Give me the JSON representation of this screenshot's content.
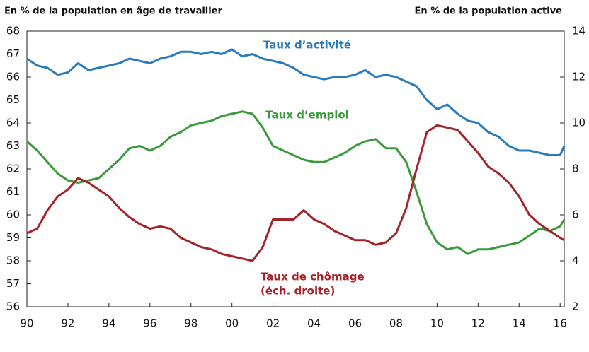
{
  "chart_data": {
    "type": "line",
    "left_axis_label": "En % de la population en âge de travailler",
    "right_axis_label": "En % de la population active",
    "x": [
      1990,
      1990.5,
      1991,
      1991.5,
      1992,
      1992.5,
      1993,
      1993.5,
      1994,
      1994.5,
      1995,
      1995.5,
      1996,
      1996.5,
      1997,
      1997.5,
      1998,
      1998.5,
      1999,
      1999.5,
      2000,
      2000.5,
      2001,
      2001.5,
      2002,
      2002.5,
      2003,
      2003.5,
      2004,
      2004.5,
      2005,
      2005.5,
      2006,
      2006.5,
      2007,
      2007.5,
      2008,
      2008.5,
      2009,
      2009.5,
      2010,
      2010.5,
      2011,
      2011.5,
      2012,
      2012.5,
      2013,
      2013.5,
      2014,
      2014.5,
      2015,
      2015.5,
      2016,
      2016.2
    ],
    "series": [
      {
        "name": "Taux d’activité",
        "color": "#2b7bba",
        "axis": "y",
        "values": [
          66.8,
          66.5,
          66.4,
          66.1,
          66.2,
          66.6,
          66.3,
          66.4,
          66.5,
          66.6,
          66.8,
          66.7,
          66.6,
          66.8,
          66.9,
          67.1,
          67.1,
          67.0,
          67.1,
          67.0,
          67.2,
          66.9,
          67.0,
          66.8,
          66.7,
          66.6,
          66.4,
          66.1,
          66.0,
          65.9,
          66.0,
          66.0,
          66.1,
          66.3,
          66.0,
          66.1,
          66.0,
          65.8,
          65.6,
          65.0,
          64.6,
          64.8,
          64.4,
          64.1,
          64.0,
          63.6,
          63.4,
          63.0,
          62.8,
          62.8,
          62.7,
          62.6,
          62.6,
          63.0
        ]
      },
      {
        "name": "Taux d’emploi",
        "color": "#3b9a3b",
        "axis": "y",
        "values": [
          63.2,
          62.8,
          62.3,
          61.8,
          61.5,
          61.4,
          61.5,
          61.6,
          62.0,
          62.4,
          62.9,
          63.0,
          62.8,
          63.0,
          63.4,
          63.6,
          63.9,
          64.0,
          64.1,
          64.3,
          64.4,
          64.5,
          64.4,
          63.8,
          63.0,
          62.8,
          62.6,
          62.4,
          62.3,
          62.3,
          62.5,
          62.7,
          63.0,
          63.2,
          63.3,
          62.9,
          62.9,
          62.3,
          61.0,
          59.6,
          58.8,
          58.5,
          58.6,
          58.3,
          58.5,
          58.5,
          58.6,
          58.7,
          58.8,
          59.1,
          59.4,
          59.3,
          59.5,
          59.8
        ]
      },
      {
        "name": "Taux de chômage",
        "color": "#a4242b",
        "axis": "y2",
        "values": [
          5.2,
          5.4,
          6.2,
          6.8,
          7.1,
          7.6,
          7.4,
          7.1,
          6.8,
          6.3,
          5.9,
          5.6,
          5.4,
          5.5,
          5.4,
          5.0,
          4.8,
          4.6,
          4.5,
          4.3,
          4.2,
          4.1,
          4.0,
          4.6,
          5.8,
          5.8,
          5.8,
          6.2,
          5.8,
          5.6,
          5.3,
          5.1,
          4.9,
          4.9,
          4.7,
          4.8,
          5.2,
          6.3,
          8.0,
          9.6,
          9.9,
          9.8,
          9.7,
          9.2,
          8.7,
          8.1,
          7.8,
          7.4,
          6.8,
          6.0,
          5.6,
          5.3,
          5.0,
          4.9
        ]
      }
    ],
    "right_scale_note": "(éch. droite)",
    "xlim": [
      1990,
      2016.2
    ],
    "xticks": [
      {
        "value": 1990,
        "label": "90"
      },
      {
        "value": 1992,
        "label": "92"
      },
      {
        "value": 1994,
        "label": "94"
      },
      {
        "value": 1996,
        "label": "96"
      },
      {
        "value": 1998,
        "label": "98"
      },
      {
        "value": 2000,
        "label": "00"
      },
      {
        "value": 2002,
        "label": "02"
      },
      {
        "value": 2004,
        "label": "04"
      },
      {
        "value": 2006,
        "label": "06"
      },
      {
        "value": 2008,
        "label": "08"
      },
      {
        "value": 2010,
        "label": "10"
      },
      {
        "value": 2012,
        "label": "12"
      },
      {
        "value": 2014,
        "label": "14"
      },
      {
        "value": 2016,
        "label": "16"
      }
    ],
    "ylim": [
      56,
      68
    ],
    "yticks": [
      56,
      57,
      58,
      59,
      60,
      61,
      62,
      63,
      64,
      65,
      66,
      67,
      68
    ],
    "y2lim": [
      2,
      14
    ],
    "y2ticks": [
      2,
      4,
      6,
      8,
      10,
      12,
      14
    ]
  }
}
